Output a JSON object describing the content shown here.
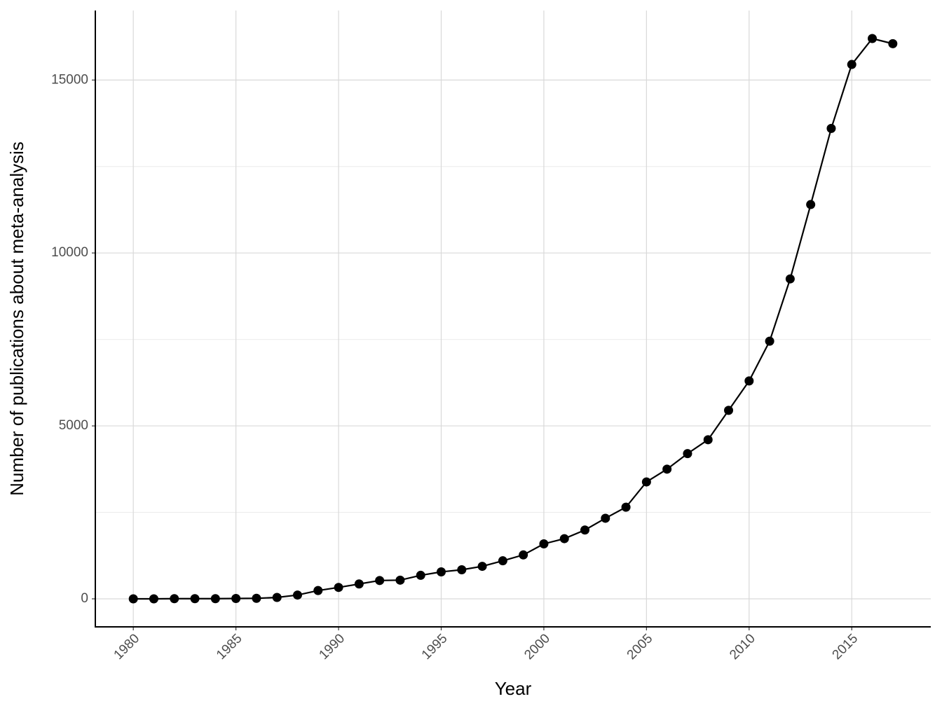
{
  "chart_data": {
    "type": "line",
    "x_label": "Year",
    "y_label": "Number of publications about meta-analysis",
    "x": [
      1980,
      1981,
      1982,
      1983,
      1984,
      1985,
      1986,
      1987,
      1988,
      1989,
      1990,
      1991,
      1992,
      1993,
      1994,
      1995,
      1996,
      1997,
      1998,
      1999,
      2000,
      2001,
      2002,
      2003,
      2004,
      2005,
      2006,
      2007,
      2008,
      2009,
      2010,
      2011,
      2012,
      2013,
      2014,
      2015,
      2016,
      2017
    ],
    "series": [
      {
        "name": "Publications",
        "color": "#000000",
        "values": [
          0,
          0,
          5,
          5,
          5,
          10,
          15,
          40,
          110,
          240,
          330,
          430,
          530,
          540,
          680,
          780,
          840,
          940,
          1100,
          1270,
          1590,
          1740,
          1990,
          2330,
          2650,
          3380,
          3750,
          4200,
          4600,
          5450,
          6300,
          7450,
          9250,
          11400,
          13600,
          15450,
          16200,
          16050
        ]
      }
    ],
    "xlim": [
      1978.15,
      2018.85
    ],
    "ylim": [
      -810,
      17010
    ],
    "xticks": [
      1980,
      1985,
      1990,
      1995,
      2000,
      2005,
      2010,
      2015
    ],
    "yticks": [
      0,
      5000,
      10000,
      15000
    ],
    "y_minor_grid": [
      2500,
      7500,
      12500
    ],
    "grid": true
  }
}
